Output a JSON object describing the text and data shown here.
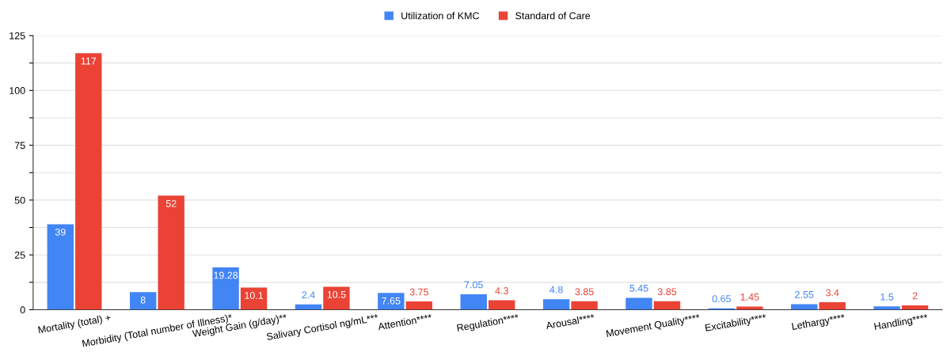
{
  "chart_data": {
    "type": "bar",
    "categories": [
      "Mortality (total) +",
      "Morbidity (Total number of Illness)*",
      "Weight Gain (g/day)**",
      "Salivary Cortisol ng/mL***",
      "Attention****",
      "Regulation****",
      "Arousal****",
      "Movement Quality****",
      "Excitability****",
      "Lethargy****",
      "Handling****"
    ],
    "series": [
      {
        "name": "Utilization of KMC",
        "color": "#4285f4",
        "values": [
          39,
          8,
          19.28,
          2.4,
          7.65,
          7.05,
          4.8,
          5.45,
          0.65,
          2.55,
          1.5
        ]
      },
      {
        "name": "Standard of Care",
        "color": "#ea4335",
        "values": [
          117,
          52,
          10.1,
          10.5,
          3.75,
          4.3,
          3.85,
          3.85,
          1.45,
          3.4,
          2
        ]
      }
    ],
    "ylim": [
      0,
      125
    ],
    "yticks": [
      0,
      {
        "value": 12.5,
        "label": null
      },
      25,
      {
        "value": 37.5,
        "label": null
      },
      50,
      {
        "value": 62.5,
        "label": null
      },
      75,
      {
        "value": 87.5,
        "label": null
      },
      100,
      {
        "value": 112.5,
        "label": null
      },
      125
    ],
    "grid": "y",
    "legend": "top",
    "data_labels": true
  }
}
